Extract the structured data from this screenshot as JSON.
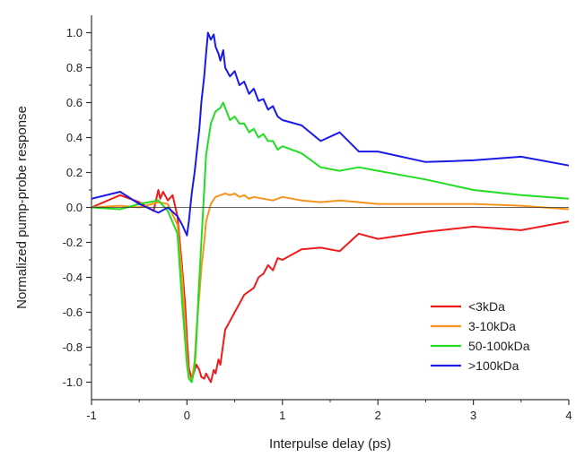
{
  "chart_data": {
    "type": "line",
    "title": "",
    "xlabel": "Interpulse delay (ps)",
    "ylabel": "Normalized pump-probe response",
    "xlim": [
      -1,
      4
    ],
    "ylim": [
      -1.1,
      1.1
    ],
    "x_ticks": [
      -1,
      0,
      1,
      2,
      3,
      4
    ],
    "y_ticks": [
      -1.0,
      -0.8,
      -0.6,
      -0.4,
      -0.2,
      0.0,
      0.2,
      0.4,
      0.6,
      0.8,
      1.0
    ],
    "x_tick_labels": [
      "-1",
      "0",
      "1",
      "2",
      "3",
      "4"
    ],
    "y_tick_labels": [
      "-1.0",
      "-0.8",
      "-0.6",
      "-0.4",
      "-0.2",
      "0.0",
      "0.2",
      "0.4",
      "0.6",
      "0.8",
      "1.0"
    ],
    "grid": false,
    "legend_position": "bottom-right",
    "series": [
      {
        "name": "<3kDa",
        "color": "#ee1c1c",
        "x": [
          -1.0,
          -0.7,
          -0.5,
          -0.35,
          -0.3,
          -0.28,
          -0.25,
          -0.2,
          -0.15,
          -0.1,
          -0.05,
          -0.02,
          0.0,
          0.02,
          0.05,
          0.07,
          0.1,
          0.13,
          0.15,
          0.18,
          0.2,
          0.22,
          0.25,
          0.28,
          0.3,
          0.33,
          0.35,
          0.38,
          0.4,
          0.45,
          0.5,
          0.55,
          0.6,
          0.65,
          0.7,
          0.75,
          0.8,
          0.85,
          0.9,
          0.95,
          1.0,
          1.2,
          1.4,
          1.6,
          1.8,
          2.0,
          2.5,
          3.0,
          3.5,
          4.0
        ],
        "y": [
          0.0,
          0.07,
          0.03,
          -0.02,
          0.1,
          0.05,
          0.09,
          0.04,
          0.07,
          -0.05,
          -0.35,
          -0.55,
          -0.75,
          -0.92,
          -0.98,
          -0.95,
          -0.9,
          -0.93,
          -0.97,
          -0.98,
          -0.95,
          -0.97,
          -1.0,
          -0.93,
          -0.95,
          -0.87,
          -0.9,
          -0.78,
          -0.7,
          -0.65,
          -0.6,
          -0.55,
          -0.5,
          -0.48,
          -0.46,
          -0.4,
          -0.38,
          -0.33,
          -0.36,
          -0.29,
          -0.3,
          -0.24,
          -0.23,
          -0.25,
          -0.15,
          -0.18,
          -0.14,
          -0.11,
          -0.13,
          -0.08
        ]
      },
      {
        "name": "3-10kDa",
        "color": "#f7941d",
        "x": [
          -1.0,
          -0.7,
          -0.5,
          -0.3,
          -0.2,
          -0.1,
          -0.05,
          0.0,
          0.02,
          0.05,
          0.08,
          0.1,
          0.13,
          0.15,
          0.18,
          0.2,
          0.25,
          0.3,
          0.35,
          0.4,
          0.45,
          0.5,
          0.55,
          0.6,
          0.65,
          0.7,
          0.8,
          0.9,
          1.0,
          1.2,
          1.4,
          1.6,
          1.8,
          2.0,
          2.5,
          3.0,
          3.5,
          4.0
        ],
        "y": [
          0.0,
          0.01,
          0.0,
          0.03,
          0.02,
          -0.1,
          -0.4,
          -0.85,
          -0.97,
          -0.99,
          -0.88,
          -0.7,
          -0.5,
          -0.35,
          -0.2,
          -0.08,
          0.02,
          0.06,
          0.07,
          0.08,
          0.07,
          0.08,
          0.06,
          0.07,
          0.05,
          0.06,
          0.05,
          0.04,
          0.06,
          0.04,
          0.03,
          0.04,
          0.03,
          0.02,
          0.02,
          0.02,
          0.01,
          -0.01
        ]
      },
      {
        "name": "50-100kDa",
        "color": "#22dd22",
        "x": [
          -1.0,
          -0.7,
          -0.5,
          -0.3,
          -0.2,
          -0.1,
          -0.05,
          0.0,
          0.02,
          0.05,
          0.08,
          0.1,
          0.12,
          0.15,
          0.18,
          0.2,
          0.25,
          0.3,
          0.35,
          0.38,
          0.4,
          0.45,
          0.5,
          0.55,
          0.6,
          0.65,
          0.7,
          0.75,
          0.8,
          0.85,
          0.9,
          0.95,
          1.0,
          1.2,
          1.4,
          1.6,
          1.8,
          2.0,
          2.5,
          3.0,
          3.5,
          4.0
        ],
        "y": [
          0.0,
          -0.01,
          0.02,
          0.04,
          -0.02,
          -0.15,
          -0.55,
          -0.9,
          -0.98,
          -1.0,
          -0.92,
          -0.75,
          -0.5,
          -0.2,
          0.1,
          0.3,
          0.48,
          0.55,
          0.57,
          0.6,
          0.57,
          0.5,
          0.52,
          0.48,
          0.48,
          0.43,
          0.45,
          0.4,
          0.42,
          0.38,
          0.38,
          0.33,
          0.35,
          0.31,
          0.23,
          0.21,
          0.23,
          0.21,
          0.16,
          0.1,
          0.07,
          0.05
        ]
      },
      {
        "name": ">100kDa",
        "color": "#1a1ae6",
        "x": [
          -1.0,
          -0.7,
          -0.5,
          -0.3,
          -0.2,
          -0.1,
          -0.05,
          0.0,
          0.02,
          0.05,
          0.08,
          0.1,
          0.13,
          0.15,
          0.18,
          0.2,
          0.22,
          0.25,
          0.28,
          0.3,
          0.33,
          0.35,
          0.38,
          0.4,
          0.45,
          0.5,
          0.55,
          0.6,
          0.65,
          0.7,
          0.75,
          0.8,
          0.85,
          0.9,
          0.95,
          1.0,
          1.2,
          1.4,
          1.6,
          1.8,
          2.0,
          2.5,
          3.0,
          3.5,
          4.0
        ],
        "y": [
          0.05,
          0.09,
          0.02,
          -0.03,
          0.0,
          -0.05,
          -0.1,
          -0.16,
          -0.08,
          0.08,
          0.2,
          0.3,
          0.45,
          0.6,
          0.75,
          0.88,
          1.0,
          0.96,
          0.99,
          0.92,
          0.88,
          0.84,
          0.9,
          0.8,
          0.75,
          0.78,
          0.7,
          0.72,
          0.65,
          0.68,
          0.61,
          0.62,
          0.56,
          0.58,
          0.52,
          0.5,
          0.47,
          0.38,
          0.43,
          0.32,
          0.32,
          0.26,
          0.27,
          0.29,
          0.24
        ]
      }
    ]
  }
}
